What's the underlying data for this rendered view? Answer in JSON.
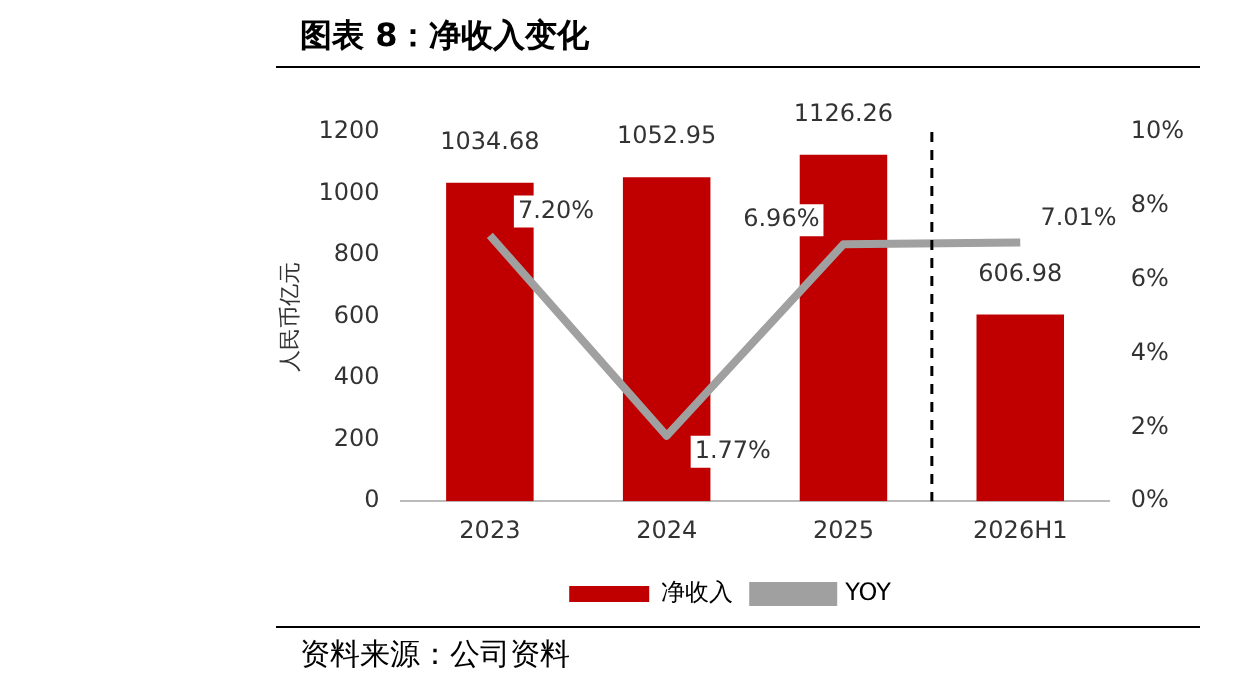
{
  "chart_data": {
    "type": "bar",
    "title": "图表 8：净收入变化",
    "ylabel": "人民币亿元",
    "categories": [
      "2023",
      "2024",
      "2025",
      "2026H1"
    ],
    "series": [
      {
        "name": "净收入",
        "color": "#c00000",
        "values": [
          1034.68,
          1052.95,
          1126.26,
          606.98
        ],
        "value_labels": [
          "1034.68",
          "1052.95",
          "1126.26",
          "606.98"
        ]
      },
      {
        "name": "YOY",
        "type": "line",
        "axis": "y2",
        "color": "#a0a0a0",
        "values": [
          7.2,
          1.77,
          6.96,
          7.01
        ],
        "value_labels": [
          "7.20%",
          "1.77%",
          "6.96%",
          "7.01%"
        ]
      }
    ],
    "ylim": [
      0,
      1200
    ],
    "yticks": [
      0,
      200,
      400,
      600,
      800,
      1000,
      1200
    ],
    "y2lim": [
      0,
      10
    ],
    "y2ticks": [
      {
        "value": 0,
        "label": "0%"
      },
      {
        "value": 2,
        "label": "2%"
      },
      {
        "value": 4,
        "label": "4%"
      },
      {
        "value": 6,
        "label": "6%"
      },
      {
        "value": 8,
        "label": "8%"
      },
      {
        "value": 10,
        "label": "10%"
      }
    ],
    "legend": "bottom",
    "grid": false,
    "marker": "none",
    "annotations": [
      "资料来源：公司资料"
    ]
  }
}
